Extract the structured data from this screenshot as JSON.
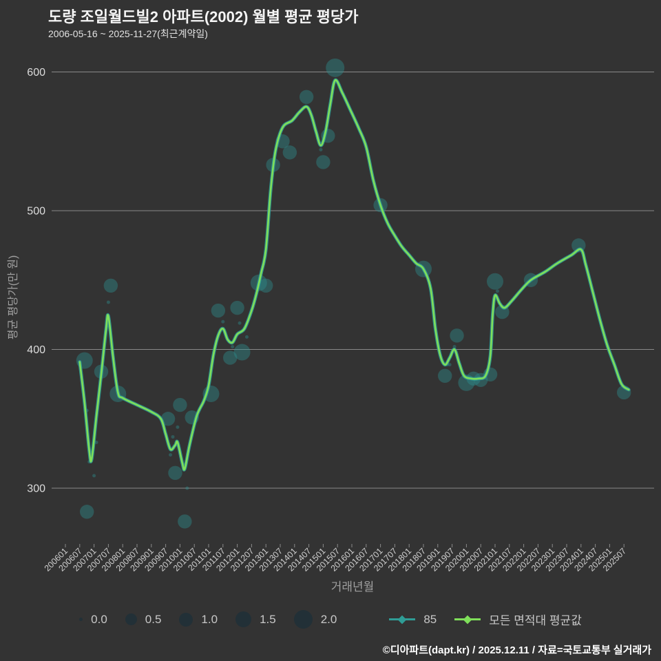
{
  "chart_data": {
    "type": "line+bubble-scatter",
    "title": "도량 조일월드빌2 아파트(2002) 월별 평균 평당가",
    "subtitle": "2006-05-16 ~ 2025-11-27(최근계약일)",
    "xlabel": "거래년월",
    "ylabel": "평균 평당가(만 원)",
    "ylim": [
      260,
      610
    ],
    "yticks": [
      300,
      400,
      500,
      600
    ],
    "grid": "horizontal-only",
    "xticks": [
      "200601",
      "200607",
      "200701",
      "200707",
      "200801",
      "200807",
      "200901",
      "200907",
      "201001",
      "201007",
      "201101",
      "201107",
      "201201",
      "201207",
      "201301",
      "201307",
      "201401",
      "201407",
      "201501",
      "201507",
      "201601",
      "201607",
      "201701",
      "201707",
      "201801",
      "201807",
      "201901",
      "201907",
      "202001",
      "202007",
      "202101",
      "202107",
      "202201",
      "202207",
      "202301",
      "202307",
      "202401",
      "202407",
      "202501",
      "202507"
    ],
    "colors": {
      "grid": "#a0a0a0",
      "teal": "#2f9d96",
      "green": "#7fdf5a",
      "bubble": "#2d8f8f",
      "background": "#333333"
    },
    "series": [
      {
        "name": "모든 면적대 평균값",
        "color": "#7fdf5a",
        "points": [
          [
            "200607",
            391
          ],
          [
            "200609",
            362
          ],
          [
            "200611",
            327
          ],
          [
            "200612",
            321
          ],
          [
            "200702",
            352
          ],
          [
            "200704",
            382
          ],
          [
            "200706",
            414
          ],
          [
            "200707",
            424
          ],
          [
            "200709",
            394
          ],
          [
            "200711",
            369
          ],
          [
            "200801",
            365
          ],
          [
            "200807",
            360
          ],
          [
            "200901",
            355
          ],
          [
            "200905",
            350
          ],
          [
            "200907",
            339
          ],
          [
            "200909",
            328
          ],
          [
            "200911",
            331
          ],
          [
            "200912",
            333
          ],
          [
            "201002",
            318
          ],
          [
            "201003",
            314
          ],
          [
            "201005",
            331
          ],
          [
            "201008",
            352
          ],
          [
            "201011",
            363
          ],
          [
            "201101",
            374
          ],
          [
            "201103",
            396
          ],
          [
            "201105",
            410
          ],
          [
            "201107",
            415
          ],
          [
            "201109",
            407
          ],
          [
            "201111",
            405
          ],
          [
            "201201",
            411
          ],
          [
            "201204",
            415
          ],
          [
            "201207",
            428
          ],
          [
            "201209",
            440
          ],
          [
            "201211",
            455
          ],
          [
            "201301",
            472
          ],
          [
            "201303",
            515
          ],
          [
            "201305",
            543
          ],
          [
            "201308",
            560
          ],
          [
            "201312",
            565
          ],
          [
            "201403",
            571
          ],
          [
            "201406",
            575
          ],
          [
            "201408",
            569
          ],
          [
            "201410",
            557
          ],
          [
            "201412",
            547
          ],
          [
            "201502",
            557
          ],
          [
            "201504",
            577
          ],
          [
            "201506",
            594
          ],
          [
            "201509",
            585
          ],
          [
            "201512",
            574
          ],
          [
            "201604",
            559
          ],
          [
            "201607",
            546
          ],
          [
            "201610",
            522
          ],
          [
            "201701",
            504
          ],
          [
            "201704",
            491
          ],
          [
            "201707",
            482
          ],
          [
            "201710",
            474
          ],
          [
            "201801",
            468
          ],
          [
            "201804",
            462
          ],
          [
            "201807",
            458
          ],
          [
            "201810",
            444
          ],
          [
            "201812",
            415
          ],
          [
            "201902",
            396
          ],
          [
            "201904",
            389
          ],
          [
            "201906",
            394
          ],
          [
            "201908",
            400
          ],
          [
            "201910",
            390
          ],
          [
            "201912",
            381
          ],
          [
            "202003",
            379
          ],
          [
            "202006",
            379
          ],
          [
            "202009",
            381
          ],
          [
            "202011",
            395
          ],
          [
            "202012",
            425
          ],
          [
            "202101",
            439
          ],
          [
            "202103",
            433
          ],
          [
            "202105",
            430
          ],
          [
            "202108",
            435
          ],
          [
            "202112",
            443
          ],
          [
            "202204",
            450
          ],
          [
            "202210",
            456
          ],
          [
            "202303",
            462
          ],
          [
            "202309",
            468
          ],
          [
            "202401",
            472
          ],
          [
            "202403",
            461
          ],
          [
            "202406",
            441
          ],
          [
            "202409",
            421
          ],
          [
            "202412",
            403
          ],
          [
            "202503",
            389
          ],
          [
            "202506",
            375
          ],
          [
            "202509",
            371
          ]
        ]
      },
      {
        "name": "85",
        "color": "#2f9d96",
        "note": "same values as average line (single size complex), drawn beneath"
      }
    ],
    "bubbles": {
      "name": "85",
      "color": "#2d8f8f",
      "size_unit": "contract count scale 0.0–2.0",
      "points": [
        [
          "200609",
          392,
          1.5
        ],
        [
          "200610",
          356,
          0
        ],
        [
          "200610",
          283,
          1
        ],
        [
          "200611",
          319,
          0
        ],
        [
          "200701",
          309,
          0
        ],
        [
          "200702",
          333,
          0
        ],
        [
          "200704",
          384,
          1
        ],
        [
          "200707",
          434,
          0
        ],
        [
          "200708",
          446,
          1
        ],
        [
          "200711",
          368,
          1.5
        ],
        [
          "200908",
          350,
          1
        ],
        [
          "200909",
          324,
          0
        ],
        [
          "200910",
          337,
          0
        ],
        [
          "200911",
          311,
          1
        ],
        [
          "200912",
          344,
          0
        ],
        [
          "201001",
          360,
          1
        ],
        [
          "201003",
          276,
          1
        ],
        [
          "201004",
          300,
          0
        ],
        [
          "201006",
          351,
          1
        ],
        [
          "201102",
          368,
          1.5
        ],
        [
          "201105",
          428,
          1
        ],
        [
          "201107",
          420,
          0
        ],
        [
          "201110",
          394,
          1
        ],
        [
          "201111",
          402,
          0
        ],
        [
          "201201",
          430,
          1
        ],
        [
          "201202",
          419,
          0
        ],
        [
          "201203",
          398,
          1.5
        ],
        [
          "201204",
          415,
          0
        ],
        [
          "201205",
          409,
          0
        ],
        [
          "201210",
          448,
          1.5
        ],
        [
          "201301",
          446,
          1
        ],
        [
          "201304",
          533,
          1
        ],
        [
          "201308",
          550,
          1
        ],
        [
          "201311",
          542,
          1
        ],
        [
          "201406",
          582,
          1
        ],
        [
          "201412",
          544,
          0
        ],
        [
          "201501",
          535,
          1
        ],
        [
          "201503",
          554,
          1
        ],
        [
          "201506",
          603,
          2
        ],
        [
          "201701",
          504,
          1
        ],
        [
          "201807",
          458,
          1.5
        ],
        [
          "201904",
          381,
          1
        ],
        [
          "201905",
          389,
          0
        ],
        [
          "201906",
          389,
          0
        ],
        [
          "201908",
          402,
          0
        ],
        [
          "201909",
          410,
          1
        ],
        [
          "202001",
          376,
          1.5
        ],
        [
          "202004",
          379,
          1
        ],
        [
          "202007",
          378,
          1
        ],
        [
          "202011",
          382,
          1
        ],
        [
          "202101",
          449,
          1.5
        ],
        [
          "202102",
          442,
          0
        ],
        [
          "202104",
          427,
          1
        ],
        [
          "202204",
          450,
          1
        ],
        [
          "202312",
          475,
          1
        ],
        [
          "202507",
          369,
          1
        ]
      ]
    },
    "legend": {
      "size_labels": [
        "0.0",
        "0.5",
        "1.0",
        "1.5",
        "2.0"
      ],
      "series": [
        {
          "label": "85"
        },
        {
          "label": "모든 면적대 평균값"
        }
      ],
      "position": "bottom-center"
    }
  },
  "footer": {
    "credit": "©디아파트(dapt.kr) / 2025.12.11 / 자료=국토교통부 실거래가"
  }
}
